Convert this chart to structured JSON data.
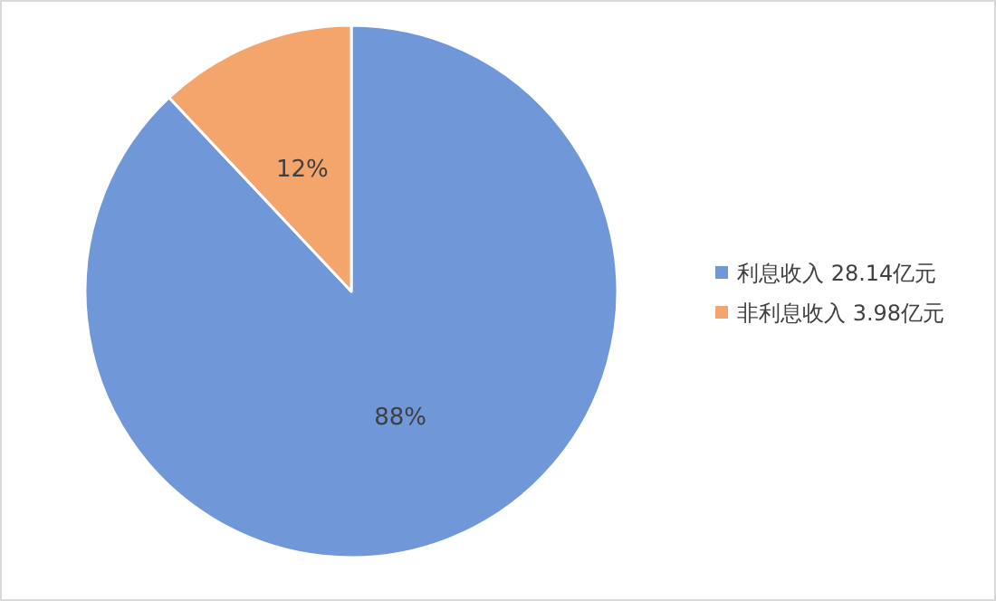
{
  "chart_data": {
    "type": "pie",
    "categories": [
      "利息收入 28.14亿元",
      "非利息收入 3.98亿元"
    ],
    "values": [
      88,
      12
    ],
    "colors": [
      "#7097d8",
      "#f4a56c"
    ],
    "value_labels": [
      "88%",
      "12%"
    ],
    "legend": "right"
  }
}
